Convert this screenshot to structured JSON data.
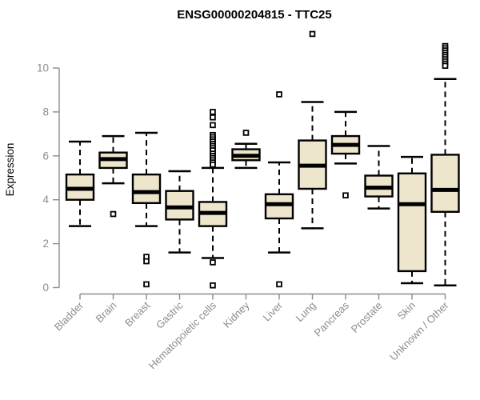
{
  "chart_data": {
    "type": "boxplot",
    "title": "ENSG00000204815 - TTC25",
    "ylabel": "Expression",
    "xlabel": "",
    "yticks": [
      0,
      2,
      4,
      6,
      8,
      10
    ],
    "ylim": [
      0,
      11.8
    ],
    "grid": false,
    "legend": "none",
    "categories": [
      "Bladder",
      "Brain",
      "Breast",
      "Gastric",
      "Hematopoietic cells",
      "Kidney",
      "Liver",
      "Lung",
      "Pancreas",
      "Prostate",
      "Skin",
      "Unknown / Other"
    ],
    "boxes": [
      {
        "category": "Bladder",
        "whisker_low": 2.8,
        "q1": 4.0,
        "median": 4.5,
        "q3": 5.15,
        "whisker_high": 6.65,
        "outliers": []
      },
      {
        "category": "Brain",
        "whisker_low": 4.75,
        "q1": 5.45,
        "median": 5.85,
        "q3": 6.15,
        "whisker_high": 6.9,
        "outliers": [
          3.35
        ]
      },
      {
        "category": "Breast",
        "whisker_low": 2.8,
        "q1": 3.85,
        "median": 4.35,
        "q3": 5.15,
        "whisker_high": 7.05,
        "outliers": [
          1.4,
          1.2,
          0.15
        ]
      },
      {
        "category": "Gastric",
        "whisker_low": 1.6,
        "q1": 3.1,
        "median": 3.65,
        "q3": 4.4,
        "whisker_high": 5.3,
        "outliers": []
      },
      {
        "category": "Hematopoietic cells",
        "whisker_low": 1.35,
        "q1": 2.8,
        "median": 3.4,
        "q3": 3.9,
        "whisker_high": 5.45,
        "outliers": [
          8.0,
          7.75,
          7.4,
          6.95,
          6.85,
          6.75,
          6.65,
          6.55,
          6.45,
          6.35,
          6.25,
          6.1,
          6.0,
          5.9,
          5.8,
          5.7,
          5.6,
          1.15,
          0.1
        ]
      },
      {
        "category": "Kidney",
        "whisker_low": 5.45,
        "q1": 5.8,
        "median": 6.0,
        "q3": 6.3,
        "whisker_high": 6.55,
        "outliers": [
          7.05
        ]
      },
      {
        "category": "Liver",
        "whisker_low": 1.6,
        "q1": 3.15,
        "median": 3.8,
        "q3": 4.25,
        "whisker_high": 5.7,
        "outliers": [
          8.8,
          0.15
        ]
      },
      {
        "category": "Lung",
        "whisker_low": 2.7,
        "q1": 4.5,
        "median": 5.55,
        "q3": 6.7,
        "whisker_high": 8.45,
        "outliers": [
          11.55
        ]
      },
      {
        "category": "Pancreas",
        "whisker_low": 5.65,
        "q1": 6.1,
        "median": 6.5,
        "q3": 6.9,
        "whisker_high": 8.0,
        "outliers": [
          4.2
        ]
      },
      {
        "category": "Prostate",
        "whisker_low": 3.6,
        "q1": 4.15,
        "median": 4.55,
        "q3": 5.1,
        "whisker_high": 6.45,
        "outliers": []
      },
      {
        "category": "Skin",
        "whisker_low": 0.2,
        "q1": 0.75,
        "median": 3.8,
        "q3": 5.2,
        "whisker_high": 5.95,
        "outliers": []
      },
      {
        "category": "Unknown / Other",
        "whisker_low": 0.1,
        "q1": 3.45,
        "median": 4.45,
        "q3": 6.05,
        "whisker_high": 9.5,
        "outliers": [
          11.0,
          10.9,
          10.8,
          10.7,
          10.6,
          10.5,
          10.4,
          10.3,
          10.2,
          10.1
        ]
      }
    ],
    "colors": {
      "box_fill": "#EDE6CC",
      "box_stroke": "#000000",
      "median": "#000000",
      "whisker": "#000000",
      "outlier_stroke": "#000000",
      "outlier_fill": "#FFFFFF",
      "axis": "#8C8C8C",
      "tick_label": "#8C8C8C",
      "title": "#000000",
      "background": "#FFFFFF"
    }
  }
}
